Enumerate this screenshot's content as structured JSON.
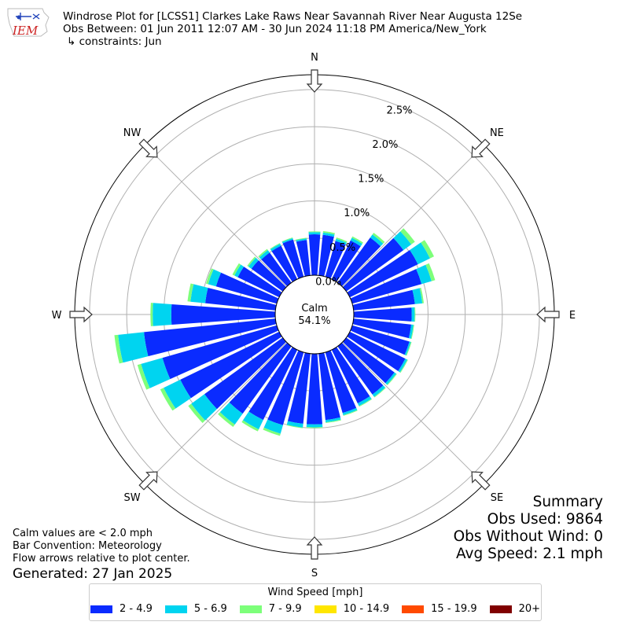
{
  "header": {
    "line1": "Windrose Plot for [LCSS1] Clarkes Lake Raws Near Savannah River Near Augusta 12Se",
    "line2": "Obs Between: 01 Jun 2011 12:07 AM - 30 Jun 2024 11:18 PM America/New_York",
    "line3": "↳ constraints: Jun"
  },
  "logo": {
    "text": "IEM",
    "color": "#cc2222",
    "accent": "#2244bb"
  },
  "notes": {
    "calm_def": "Calm values are < 2.0 mph",
    "convention": "Bar Convention: Meteorology",
    "arrows": "Flow arrows relative to plot center.",
    "generated": "Generated: 27 Jan 2025"
  },
  "summary": {
    "title": "Summary",
    "obs_used": "Obs Used: 9864",
    "obs_without_wind": "Obs Without Wind: 0",
    "avg_speed": "Avg Speed: 2.1 mph"
  },
  "legend": {
    "title": "Wind Speed [mph]",
    "items": [
      {
        "label": "2 - 4.9",
        "color": "#0a2bff"
      },
      {
        "label": "5 - 6.9",
        "color": "#00d4f0"
      },
      {
        "label": "7 - 9.9",
        "color": "#7dff7a"
      },
      {
        "label": "10 - 14.9",
        "color": "#ffe600"
      },
      {
        "label": "15 - 19.9",
        "color": "#ff4a00"
      },
      {
        "label": "20+",
        "color": "#800000"
      }
    ]
  },
  "chart_data": {
    "type": "windrose",
    "calm": {
      "label": "Calm",
      "value": "54.1%"
    },
    "directions": [
      "N",
      "NE",
      "E",
      "SE",
      "S",
      "SW",
      "W",
      "NW"
    ],
    "rings": [
      "0.0%",
      "0.5%",
      "1.0%",
      "1.5%",
      "2.0%",
      "2.5%"
    ],
    "ring_values": [
      0,
      0.5,
      1.0,
      1.5,
      2.0,
      2.5
    ],
    "rmax": 2.7,
    "sector_width_deg": 10,
    "sectors": [
      {
        "dir": 0,
        "values": [
          0.55,
          0.03,
          0.01
        ]
      },
      {
        "dir": 10,
        "values": [
          0.55,
          0.03,
          0.02
        ]
      },
      {
        "dir": 20,
        "values": [
          0.5,
          0.03,
          0.02
        ]
      },
      {
        "dir": 30,
        "values": [
          0.58,
          0.04,
          0.02
        ]
      },
      {
        "dir": 40,
        "values": [
          0.75,
          0.05,
          0.03
        ]
      },
      {
        "dir": 50,
        "values": [
          0.95,
          0.13,
          0.06
        ]
      },
      {
        "dir": 60,
        "values": [
          1.02,
          0.18,
          0.06
        ]
      },
      {
        "dir": 70,
        "values": [
          0.97,
          0.14,
          0.05
        ]
      },
      {
        "dir": 80,
        "values": [
          0.83,
          0.1,
          0.02
        ]
      },
      {
        "dir": 90,
        "values": [
          0.78,
          0.04,
          0.01
        ]
      },
      {
        "dir": 100,
        "values": [
          0.78,
          0.03,
          0.01
        ]
      },
      {
        "dir": 110,
        "values": [
          0.8,
          0.02,
          0.01
        ]
      },
      {
        "dir": 120,
        "values": [
          0.83,
          0.03,
          0.01
        ]
      },
      {
        "dir": 130,
        "values": [
          0.8,
          0.03,
          0.01
        ]
      },
      {
        "dir": 140,
        "values": [
          0.8,
          0.04,
          0.01
        ]
      },
      {
        "dir": 150,
        "values": [
          0.8,
          0.04,
          0.01
        ]
      },
      {
        "dir": 160,
        "values": [
          0.85,
          0.03,
          0.01
        ]
      },
      {
        "dir": 170,
        "values": [
          0.9,
          0.03,
          0.01
        ]
      },
      {
        "dir": 180,
        "values": [
          0.95,
          0.04,
          0.01
        ]
      },
      {
        "dir": 190,
        "values": [
          0.95,
          0.05,
          0.01
        ]
      },
      {
        "dir": 200,
        "values": [
          1.02,
          0.12,
          0.03
        ]
      },
      {
        "dir": 210,
        "values": [
          1.05,
          0.14,
          0.03
        ]
      },
      {
        "dir": 220,
        "values": [
          1.12,
          0.18,
          0.04
        ]
      },
      {
        "dir": 230,
        "values": [
          1.3,
          0.22,
          0.05
        ]
      },
      {
        "dir": 240,
        "values": [
          1.48,
          0.25,
          0.05
        ]
      },
      {
        "dir": 250,
        "values": [
          1.6,
          0.3,
          0.05
        ]
      },
      {
        "dir": 260,
        "values": [
          1.78,
          0.35,
          0.05
        ]
      },
      {
        "dir": 270,
        "values": [
          1.4,
          0.25,
          0.03
        ]
      },
      {
        "dir": 280,
        "values": [
          0.95,
          0.2,
          0.04
        ]
      },
      {
        "dir": 290,
        "values": [
          0.85,
          0.11,
          0.03
        ]
      },
      {
        "dir": 300,
        "values": [
          0.62,
          0.05,
          0.03
        ]
      },
      {
        "dir": 310,
        "values": [
          0.52,
          0.05,
          0.02
        ]
      },
      {
        "dir": 320,
        "values": [
          0.5,
          0.04,
          0.02
        ]
      },
      {
        "dir": 330,
        "values": [
          0.5,
          0.03,
          0.01
        ]
      },
      {
        "dir": 340,
        "values": [
          0.52,
          0.02,
          0.01
        ]
      },
      {
        "dir": 350,
        "values": [
          0.48,
          0.02,
          0.01
        ]
      }
    ]
  }
}
